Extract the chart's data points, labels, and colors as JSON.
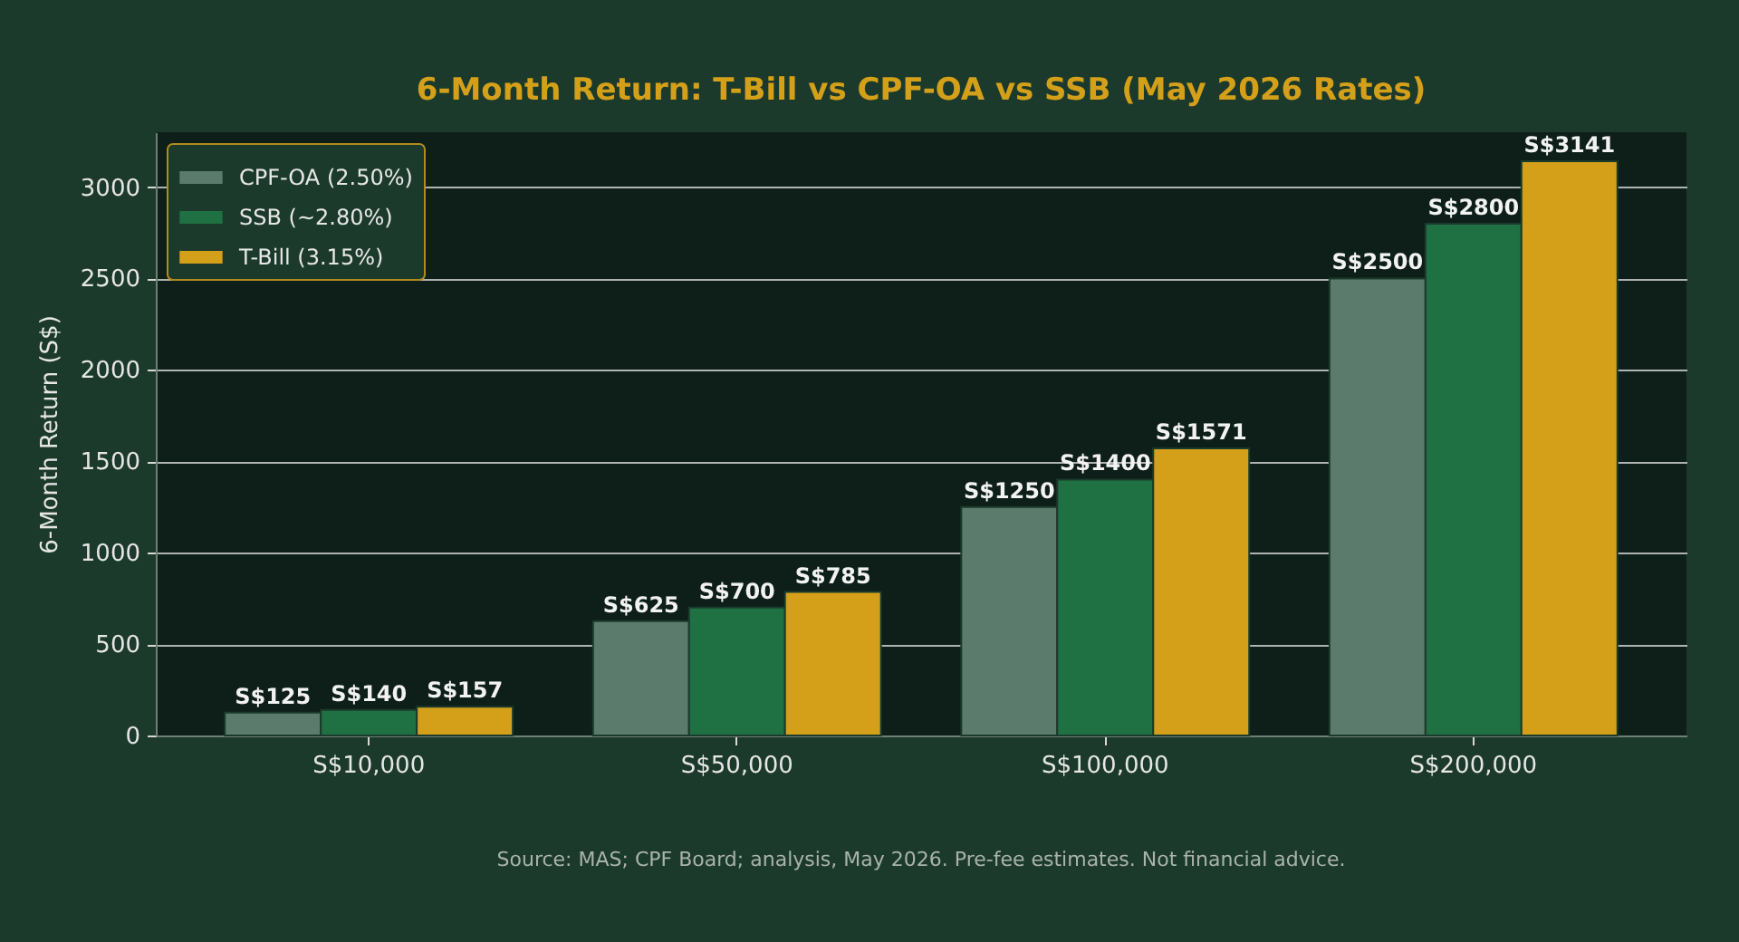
{
  "chart_data": {
    "type": "bar",
    "title": "6-Month Return: T-Bill vs CPF-OA vs SSB (May 2026 Rates)",
    "ylabel": "6-Month Return (S$)",
    "categories": [
      "S$10,000",
      "S$50,000",
      "S$100,000",
      "S$200,000"
    ],
    "series": [
      {
        "name": "CPF-OA (2.50%)",
        "color": "#5b7c6c",
        "values": [
          125,
          625,
          1250,
          2500
        ],
        "value_labels": [
          "S$125",
          "S$625",
          "S$1250",
          "S$2500"
        ]
      },
      {
        "name": "SSB (~2.80%)",
        "color": "#1f7043",
        "values": [
          140,
          700,
          1400,
          2800
        ],
        "value_labels": [
          "S$140",
          "S$700",
          "S$1400",
          "S$2800"
        ]
      },
      {
        "name": "T-Bill (3.15%)",
        "color": "#d4a01a",
        "values": [
          157,
          785,
          1571,
          3141
        ],
        "value_labels": [
          "S$157",
          "S$785",
          "S$1571",
          "S$3141"
        ]
      }
    ],
    "ylim": [
      0,
      3300
    ],
    "yticks": [
      0,
      500,
      1000,
      1500,
      2000,
      2500,
      3000
    ],
    "grid": "y",
    "legend": "top left",
    "annotations": [
      "Source: MAS; CPF Board; analysis, May 2026. Pre-fee estimates. Not financial advice."
    ]
  }
}
